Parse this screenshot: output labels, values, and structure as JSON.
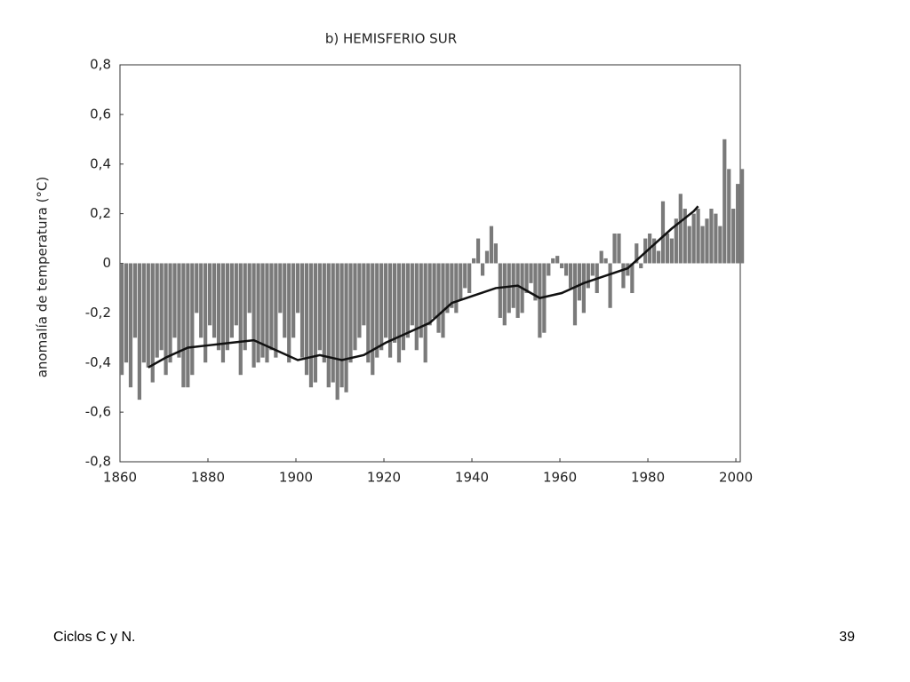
{
  "chart_data": {
    "type": "bar",
    "title": "b) HEMISFERIO SUR",
    "ylabel": "anomalía de temperatura (°C)",
    "color": "#7a7a7a",
    "line_color": "#111111",
    "xlim": [
      1860,
      2001
    ],
    "xticks": [
      1860,
      1880,
      1900,
      1920,
      1940,
      1960,
      1980,
      2000
    ],
    "ylim": [
      -0.8,
      0.8
    ],
    "yticks": [
      {
        "value": -0.8,
        "label": "-0,8"
      },
      {
        "value": -0.6,
        "label": "-0,6"
      },
      {
        "value": -0.4,
        "label": "-0,4"
      },
      {
        "value": -0.2,
        "label": "-0,2"
      },
      0,
      {
        "value": 0.2,
        "label": "0,2"
      },
      {
        "value": 0.4,
        "label": "0,4"
      },
      {
        "value": 0.6,
        "label": "0,6"
      },
      {
        "value": 0.8,
        "label": "0,8"
      }
    ],
    "x": [
      1860,
      1861,
      1862,
      1863,
      1864,
      1865,
      1866,
      1867,
      1868,
      1869,
      1870,
      1871,
      1872,
      1873,
      1874,
      1875,
      1876,
      1877,
      1878,
      1879,
      1880,
      1881,
      1882,
      1883,
      1884,
      1885,
      1886,
      1887,
      1888,
      1889,
      1890,
      1891,
      1892,
      1893,
      1894,
      1895,
      1896,
      1897,
      1898,
      1899,
      1900,
      1901,
      1902,
      1903,
      1904,
      1905,
      1906,
      1907,
      1908,
      1909,
      1910,
      1911,
      1912,
      1913,
      1914,
      1915,
      1916,
      1917,
      1918,
      1919,
      1920,
      1921,
      1922,
      1923,
      1924,
      1925,
      1926,
      1927,
      1928,
      1929,
      1930,
      1931,
      1932,
      1933,
      1934,
      1935,
      1936,
      1937,
      1938,
      1939,
      1940,
      1941,
      1942,
      1943,
      1944,
      1945,
      1946,
      1947,
      1948,
      1949,
      1950,
      1951,
      1952,
      1953,
      1954,
      1955,
      1956,
      1957,
      1958,
      1959,
      1960,
      1961,
      1962,
      1963,
      1964,
      1965,
      1966,
      1967,
      1968,
      1969,
      1970,
      1971,
      1972,
      1973,
      1974,
      1975,
      1976,
      1977,
      1978,
      1979,
      1980,
      1981,
      1982,
      1983,
      1984,
      1985,
      1986,
      1987,
      1988,
      1989,
      1990,
      1991,
      1992,
      1993,
      1994,
      1995,
      1996,
      1997,
      1998,
      1999,
      2000,
      2001
    ],
    "values": [
      -0.45,
      -0.4,
      -0.5,
      -0.3,
      -0.55,
      -0.4,
      -0.42,
      -0.48,
      -0.38,
      -0.35,
      -0.45,
      -0.4,
      -0.3,
      -0.38,
      -0.5,
      -0.5,
      -0.45,
      -0.2,
      -0.3,
      -0.4,
      -0.25,
      -0.3,
      -0.35,
      -0.4,
      -0.35,
      -0.3,
      -0.25,
      -0.45,
      -0.35,
      -0.2,
      -0.42,
      -0.4,
      -0.38,
      -0.4,
      -0.35,
      -0.38,
      -0.2,
      -0.3,
      -0.4,
      -0.3,
      -0.2,
      -0.38,
      -0.45,
      -0.5,
      -0.48,
      -0.35,
      -0.4,
      -0.5,
      -0.48,
      -0.55,
      -0.5,
      -0.52,
      -0.4,
      -0.35,
      -0.3,
      -0.25,
      -0.4,
      -0.45,
      -0.38,
      -0.35,
      -0.3,
      -0.38,
      -0.32,
      -0.4,
      -0.35,
      -0.3,
      -0.25,
      -0.35,
      -0.3,
      -0.4,
      -0.25,
      -0.22,
      -0.28,
      -0.3,
      -0.2,
      -0.18,
      -0.2,
      -0.15,
      -0.1,
      -0.12,
      0.02,
      0.1,
      -0.05,
      0.05,
      0.15,
      0.08,
      -0.22,
      -0.25,
      -0.2,
      -0.18,
      -0.22,
      -0.2,
      -0.12,
      -0.08,
      -0.15,
      -0.3,
      -0.28,
      -0.05,
      0.02,
      0.03,
      -0.02,
      -0.05,
      -0.1,
      -0.25,
      -0.15,
      -0.2,
      -0.1,
      -0.05,
      -0.12,
      0.05,
      0.02,
      -0.18,
      0.12,
      0.12,
      -0.1,
      -0.05,
      -0.12,
      0.08,
      -0.02,
      0.1,
      0.12,
      0.1,
      0.05,
      0.25,
      0.12,
      0.1,
      0.18,
      0.28,
      0.22,
      0.15,
      0.2,
      0.22,
      0.15,
      0.18,
      0.22,
      0.2,
      0.15,
      0.5,
      0.38,
      0.22,
      0.32,
      0.38
    ],
    "smooth": {
      "x": [
        1866,
        1870,
        1875,
        1880,
        1885,
        1890,
        1895,
        1900,
        1905,
        1910,
        1915,
        1920,
        1925,
        1930,
        1935,
        1940,
        1945,
        1950,
        1955,
        1960,
        1965,
        1970,
        1975,
        1980,
        1985,
        1990,
        1991
      ],
      "values": [
        -0.42,
        -0.38,
        -0.34,
        -0.33,
        -0.32,
        -0.31,
        -0.35,
        -0.39,
        -0.37,
        -0.39,
        -0.37,
        -0.32,
        -0.28,
        -0.24,
        -0.16,
        -0.13,
        -0.1,
        -0.09,
        -0.14,
        -0.12,
        -0.08,
        -0.05,
        -0.02,
        0.06,
        0.14,
        0.21,
        0.23
      ]
    }
  },
  "footer": {
    "left": "Ciclos C y N.",
    "right": "39"
  }
}
